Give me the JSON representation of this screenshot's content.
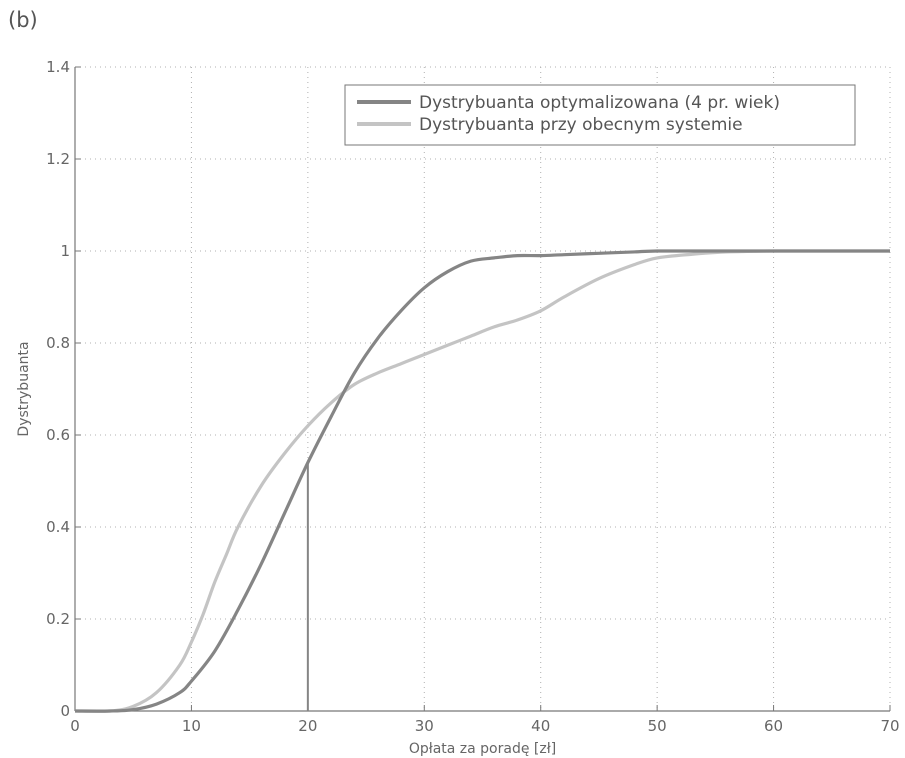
{
  "panel_label": "(b)",
  "colors": {
    "optimized": "#858585",
    "current": "#c4c4c4",
    "marker": "#858585",
    "grid": "#b0b0b0",
    "axis": "#777777"
  },
  "chart_data": {
    "type": "line",
    "xlabel": "Opłata za poradę [zł]",
    "ylabel": "Dystrybuanta",
    "xlim": [
      0,
      70
    ],
    "ylim": [
      0,
      1.4
    ],
    "x_ticks": [
      0,
      10,
      20,
      30,
      40,
      50,
      60,
      70
    ],
    "y_ticks": [
      0,
      0.2,
      0.4,
      0.6,
      0.8,
      1,
      1.2,
      1.4
    ],
    "x_tick_labels": [
      "0",
      "10",
      "20",
      "30",
      "40",
      "50",
      "60",
      "70"
    ],
    "y_tick_labels": [
      "0",
      "0.2",
      "0.4",
      "0.6",
      "0.8",
      "1",
      "1.2",
      "1.4"
    ],
    "grid": true,
    "legend_position": "top-right",
    "series": [
      {
        "name": "Dystrybuanta optymalizowana (4 pr. wiek)",
        "x": [
          0,
          3,
          5,
          7,
          9,
          10,
          12,
          14,
          16,
          18,
          20,
          22,
          24,
          26,
          28,
          30,
          32,
          34,
          36,
          38,
          40,
          42,
          45,
          48,
          50,
          55,
          60,
          65,
          70
        ],
        "y": [
          0,
          0,
          0.003,
          0.015,
          0.04,
          0.065,
          0.13,
          0.22,
          0.32,
          0.43,
          0.54,
          0.64,
          0.735,
          0.81,
          0.87,
          0.92,
          0.955,
          0.978,
          0.985,
          0.99,
          0.99,
          0.992,
          0.995,
          0.998,
          1.0,
          1.0,
          1.0,
          1.0,
          1.0
        ]
      },
      {
        "name": "Dystrybuanta przy obecnym systemie",
        "x": [
          0,
          3,
          5,
          7,
          9,
          10,
          11,
          12,
          13,
          14,
          16,
          18,
          20,
          22,
          24,
          26,
          28,
          30,
          32,
          34,
          36,
          38,
          40,
          42,
          45,
          48,
          50,
          53,
          56,
          60,
          65,
          70
        ],
        "y": [
          0,
          0,
          0.01,
          0.04,
          0.1,
          0.15,
          0.21,
          0.28,
          0.34,
          0.4,
          0.49,
          0.56,
          0.62,
          0.67,
          0.71,
          0.735,
          0.755,
          0.775,
          0.795,
          0.815,
          0.835,
          0.85,
          0.87,
          0.9,
          0.94,
          0.97,
          0.985,
          0.993,
          0.998,
          1.0,
          1.0,
          1.0
        ]
      }
    ],
    "annotations": [
      {
        "type": "vertical-line",
        "x": 20,
        "y_from": 0,
        "y_to": 0.54
      }
    ]
  }
}
